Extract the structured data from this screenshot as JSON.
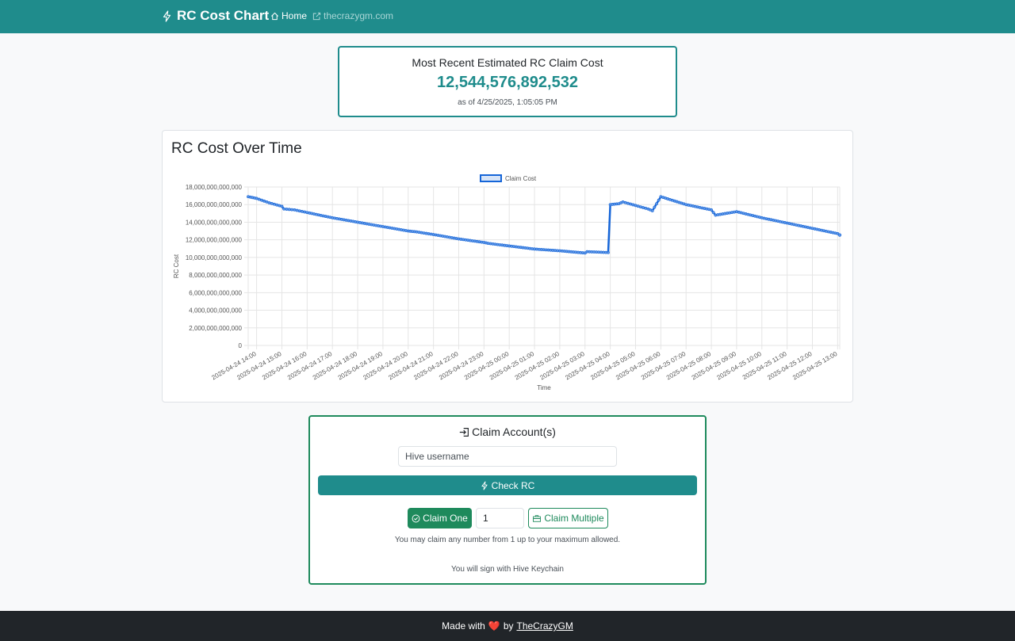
{
  "navbar": {
    "brand": "RC Cost Chart",
    "home_label": "Home",
    "external_link_label": "thecrazygm.com",
    "brand_icon": "lightning-icon",
    "home_icon": "house-icon",
    "external_icon": "external-link-icon"
  },
  "recent": {
    "title": "Most Recent Estimated RC Claim Cost",
    "value": "12,544,576,892,532",
    "as_of": "as of 4/25/2025, 1:05:05 PM"
  },
  "chart_card": {
    "title": "RC Cost Over Time"
  },
  "chart_data": {
    "type": "line",
    "title": "",
    "xlabel": "Time",
    "ylabel": "RC Cost",
    "legend": "top-center",
    "grid": true,
    "ylim": [
      0,
      18000000000000
    ],
    "yticks": [
      "0",
      "2,000,000,000,000",
      "4,000,000,000,000",
      "6,000,000,000,000",
      "8,000,000,000,000",
      "10,000,000,000,000",
      "12,000,000,000,000",
      "14,000,000,000,000",
      "16,000,000,000,000",
      "18,000,000,000,000"
    ],
    "xticks": [
      "2025-04-24 14:00",
      "2025-04-24 15:00",
      "2025-04-24 16:00",
      "2025-04-24 17:00",
      "2025-04-24 18:00",
      "2025-04-24 19:00",
      "2025-04-24 20:00",
      "2025-04-24 21:00",
      "2025-04-24 22:00",
      "2025-04-24 23:00",
      "2025-04-25 00:00",
      "2025-04-25 01:00",
      "2025-04-25 02:00",
      "2025-04-25 03:00",
      "2025-04-25 04:00",
      "2025-04-25 05:00",
      "2025-04-25 06:00",
      "2025-04-25 07:00",
      "2025-04-25 08:00",
      "2025-04-25 09:00",
      "2025-04-25 10:00",
      "2025-04-25 11:00",
      "2025-04-25 12:00",
      "2025-04-25 13:00"
    ],
    "series": [
      {
        "name": "Claim Cost",
        "color": "#1565d8",
        "x": [
          "2025-04-24 13:40",
          "2025-04-24 14:00",
          "2025-04-24 14:30",
          "2025-04-24 15:00",
          "2025-04-24 15:05",
          "2025-04-24 15:30",
          "2025-04-24 16:00",
          "2025-04-24 17:00",
          "2025-04-24 18:00",
          "2025-04-24 19:00",
          "2025-04-24 20:00",
          "2025-04-24 20:20",
          "2025-04-24 21:00",
          "2025-04-24 22:00",
          "2025-04-24 23:00",
          "2025-04-24 23:10",
          "2025-04-25 00:00",
          "2025-04-25 01:00",
          "2025-04-25 02:00",
          "2025-04-25 03:00",
          "2025-04-25 03:05",
          "2025-04-25 03:55",
          "2025-04-25 04:00",
          "2025-04-25 04:20",
          "2025-04-25 04:30",
          "2025-04-25 05:00",
          "2025-04-25 05:30",
          "2025-04-25 05:40",
          "2025-04-25 06:00",
          "2025-04-25 07:00",
          "2025-04-25 08:00",
          "2025-04-25 08:10",
          "2025-04-25 09:00",
          "2025-04-25 10:00",
          "2025-04-25 11:00",
          "2025-04-25 12:00",
          "2025-04-25 13:00",
          "2025-04-25 13:05"
        ],
        "values": [
          16900000000000,
          16700000000000,
          16200000000000,
          15800000000000,
          15500000000000,
          15400000000000,
          15100000000000,
          14500000000000,
          14000000000000,
          13500000000000,
          13000000000000,
          12900000000000,
          12600000000000,
          12100000000000,
          11700000000000,
          11600000000000,
          11300000000000,
          10950000000000,
          10750000000000,
          10500000000000,
          10650000000000,
          10550000000000,
          16000000000000,
          16100000000000,
          16300000000000,
          15900000000000,
          15500000000000,
          15300000000000,
          16900000000000,
          16000000000000,
          15400000000000,
          14800000000000,
          15200000000000,
          14500000000000,
          13900000000000,
          13300000000000,
          12700000000000,
          12544576892532
        ]
      }
    ]
  },
  "claim": {
    "title": "Claim Account(s)",
    "title_icon": "sign-in-icon",
    "username_placeholder": "Hive username",
    "check_label": "Check RC",
    "check_icon": "lightning-icon",
    "claim_one_label": "Claim One",
    "claim_one_icon": "check-circle-icon",
    "quantity_value": "1",
    "claim_multiple_label": "Claim Multiple",
    "claim_multiple_icon": "briefcase-icon",
    "hint": "You may claim any number from 1 up to your maximum allowed.",
    "keychain_note": "You will sign with Hive Keychain"
  },
  "footer": {
    "prefix": "Made with",
    "by": "by",
    "author": "TheCrazyGM",
    "heart_icon": "heart-icon"
  }
}
